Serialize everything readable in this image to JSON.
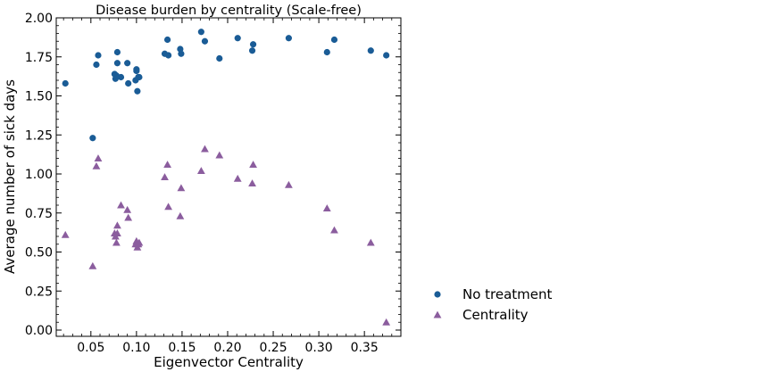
{
  "chart_data": {
    "type": "scatter",
    "title": "Disease burden by centrality (Scale-free)",
    "xlabel": "Eigenvector Centrality",
    "ylabel": "Average number of sick days",
    "xlim": [
      0.012,
      0.39
    ],
    "ylim": [
      -0.04,
      2.0
    ],
    "xticks": [
      0.05,
      0.1,
      0.15,
      0.2,
      0.25,
      0.3,
      0.35
    ],
    "xtick_labels": [
      "0.05",
      "0.10",
      "0.15",
      "0.20",
      "0.25",
      "0.30",
      "0.35"
    ],
    "yticks": [
      0.0,
      0.25,
      0.5,
      0.75,
      1.0,
      1.25,
      1.5,
      1.75,
      2.0
    ],
    "ytick_labels": [
      "0.00",
      "0.25",
      "0.50",
      "0.75",
      "1.00",
      "1.25",
      "1.50",
      "1.75",
      "2.00"
    ],
    "grid": false,
    "legend_position": "outside-right-bottom",
    "series": [
      {
        "name": "No treatment",
        "marker": "circle",
        "color": "#1a5c96",
        "x": [
          0.022,
          0.052,
          0.056,
          0.058,
          0.076,
          0.077,
          0.078,
          0.079,
          0.079,
          0.083,
          0.09,
          0.091,
          0.099,
          0.1,
          0.1,
          0.101,
          0.102,
          0.103,
          0.131,
          0.134,
          0.135,
          0.148,
          0.149,
          0.171,
          0.175,
          0.191,
          0.211,
          0.227,
          0.228,
          0.267,
          0.309,
          0.317,
          0.357,
          0.374
        ],
        "y": [
          1.58,
          1.23,
          1.7,
          1.76,
          1.64,
          1.61,
          1.63,
          1.71,
          1.78,
          1.62,
          1.71,
          1.58,
          1.6,
          1.67,
          1.66,
          1.53,
          1.62,
          1.62,
          1.77,
          1.86,
          1.76,
          1.8,
          1.77,
          1.91,
          1.85,
          1.74,
          1.87,
          1.79,
          1.83,
          1.87,
          1.78,
          1.86,
          1.79,
          1.76
        ]
      },
      {
        "name": "Centrality",
        "marker": "triangle",
        "color": "#8b5d9e",
        "x": [
          0.022,
          0.052,
          0.056,
          0.058,
          0.076,
          0.077,
          0.078,
          0.079,
          0.079,
          0.083,
          0.09,
          0.091,
          0.099,
          0.1,
          0.1,
          0.101,
          0.102,
          0.103,
          0.131,
          0.134,
          0.135,
          0.148,
          0.149,
          0.171,
          0.175,
          0.191,
          0.211,
          0.227,
          0.228,
          0.267,
          0.309,
          0.317,
          0.357,
          0.374
        ],
        "y": [
          0.61,
          0.41,
          1.05,
          1.1,
          0.62,
          0.6,
          0.56,
          0.62,
          0.67,
          0.8,
          0.77,
          0.72,
          0.55,
          0.57,
          0.56,
          0.53,
          0.55,
          0.56,
          0.98,
          1.06,
          0.79,
          0.73,
          0.91,
          1.02,
          1.16,
          1.12,
          0.97,
          0.94,
          1.06,
          0.93,
          0.78,
          0.64,
          0.56,
          0.05
        ]
      }
    ]
  }
}
